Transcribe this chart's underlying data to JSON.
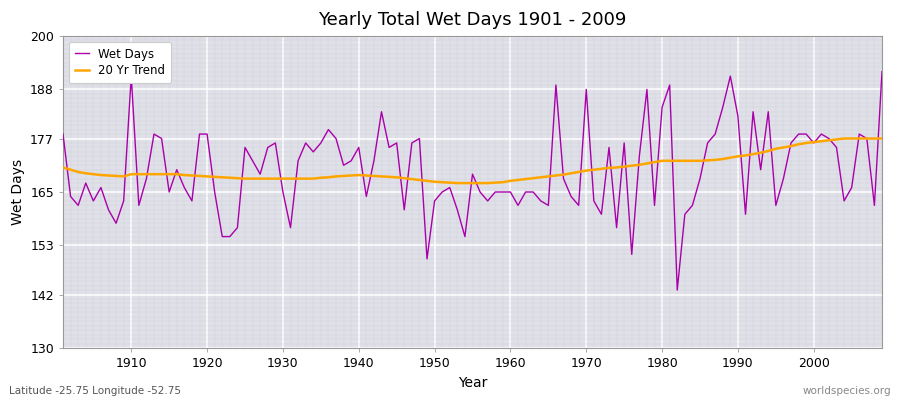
{
  "title": "Yearly Total Wet Days 1901 - 2009",
  "xlabel": "Year",
  "ylabel": "Wet Days",
  "lat_lon_label": "Latitude -25.75 Longitude -52.75",
  "watermark": "worldspecies.org",
  "ylim": [
    130,
    200
  ],
  "yticks": [
    130,
    142,
    153,
    165,
    177,
    188,
    200
  ],
  "xticks": [
    1910,
    1920,
    1930,
    1940,
    1950,
    1960,
    1970,
    1980,
    1990,
    2000
  ],
  "wet_days_color": "#AA00AA",
  "trend_color": "#FFA500",
  "plot_bg_color": "#E0E0E8",
  "fig_bg_color": "#FFFFFF",
  "years": [
    1901,
    1902,
    1903,
    1904,
    1905,
    1906,
    1907,
    1908,
    1909,
    1910,
    1911,
    1912,
    1913,
    1914,
    1915,
    1916,
    1917,
    1918,
    1919,
    1920,
    1921,
    1922,
    1923,
    1924,
    1925,
    1926,
    1927,
    1928,
    1929,
    1930,
    1931,
    1932,
    1933,
    1934,
    1935,
    1936,
    1937,
    1938,
    1939,
    1940,
    1941,
    1942,
    1943,
    1944,
    1945,
    1946,
    1947,
    1948,
    1949,
    1950,
    1951,
    1952,
    1953,
    1954,
    1955,
    1956,
    1957,
    1958,
    1959,
    1960,
    1961,
    1962,
    1963,
    1964,
    1965,
    1966,
    1967,
    1968,
    1969,
    1970,
    1971,
    1972,
    1973,
    1974,
    1975,
    1976,
    1977,
    1978,
    1979,
    1980,
    1981,
    1982,
    1983,
    1984,
    1985,
    1986,
    1987,
    1988,
    1989,
    1990,
    1991,
    1992,
    1993,
    1994,
    1995,
    1996,
    1997,
    1998,
    1999,
    2000,
    2001,
    2002,
    2003,
    2004,
    2005,
    2006,
    2007,
    2008,
    2009
  ],
  "wet_days": [
    178,
    164,
    162,
    167,
    163,
    166,
    161,
    158,
    163,
    191,
    162,
    168,
    178,
    177,
    165,
    170,
    166,
    163,
    178,
    178,
    165,
    155,
    155,
    157,
    175,
    172,
    169,
    175,
    176,
    165,
    157,
    172,
    176,
    174,
    176,
    179,
    177,
    171,
    172,
    175,
    164,
    172,
    183,
    175,
    176,
    161,
    176,
    177,
    150,
    163,
    165,
    166,
    161,
    155,
    169,
    165,
    163,
    165,
    165,
    165,
    162,
    165,
    165,
    163,
    162,
    189,
    168,
    164,
    162,
    188,
    163,
    160,
    175,
    157,
    176,
    151,
    173,
    188,
    162,
    184,
    189,
    143,
    160,
    162,
    168,
    176,
    178,
    184,
    191,
    182,
    160,
    183,
    170,
    183,
    162,
    168,
    176,
    178,
    178,
    176,
    178,
    177,
    175,
    163,
    166,
    178,
    177,
    162,
    192
  ],
  "trend": [
    170.5,
    170.0,
    169.5,
    169.2,
    169.0,
    168.8,
    168.7,
    168.6,
    168.5,
    169.0,
    169.0,
    169.0,
    169.0,
    169.0,
    169.0,
    169.0,
    168.8,
    168.7,
    168.6,
    168.5,
    168.4,
    168.3,
    168.2,
    168.1,
    168.0,
    168.0,
    168.0,
    168.0,
    168.0,
    168.0,
    168.0,
    168.0,
    168.0,
    168.0,
    168.2,
    168.3,
    168.5,
    168.6,
    168.7,
    168.8,
    168.7,
    168.6,
    168.5,
    168.4,
    168.3,
    168.1,
    167.9,
    167.7,
    167.5,
    167.3,
    167.2,
    167.1,
    167.0,
    167.0,
    167.0,
    167.0,
    167.0,
    167.1,
    167.2,
    167.5,
    167.7,
    167.9,
    168.1,
    168.3,
    168.5,
    168.7,
    168.9,
    169.2,
    169.5,
    169.8,
    170.0,
    170.2,
    170.4,
    170.5,
    170.7,
    170.9,
    171.1,
    171.4,
    171.7,
    172.0,
    172.0,
    172.0,
    172.0,
    172.0,
    172.0,
    172.1,
    172.2,
    172.4,
    172.7,
    173.0,
    173.2,
    173.5,
    173.8,
    174.2,
    174.7,
    175.0,
    175.3,
    175.7,
    176.0,
    176.2,
    176.4,
    176.6,
    176.8,
    177.0,
    177.0,
    177.0,
    177.0,
    177.0,
    177.0
  ]
}
